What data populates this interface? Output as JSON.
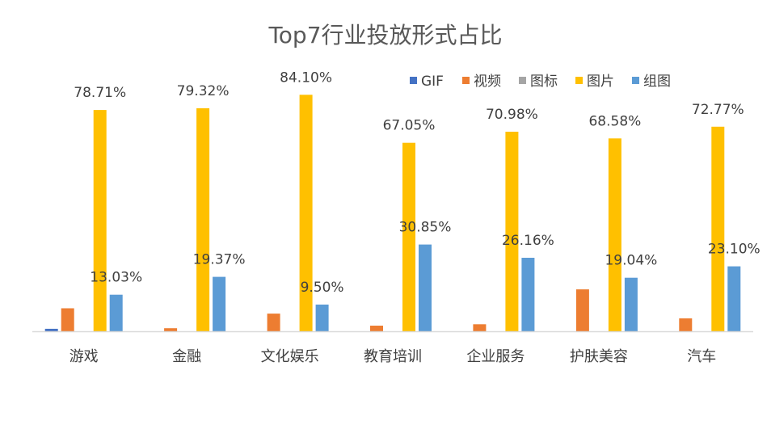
{
  "chart_data": {
    "type": "bar",
    "title": "Top7行业投放形式占比",
    "categories": [
      "游戏",
      "金融",
      "文化娱乐",
      "教育培训",
      "企业服务",
      "护肤美容",
      "汽车"
    ],
    "series": [
      {
        "name": "GIF",
        "color": "#4472C4",
        "values": [
          0.9,
          0,
          0,
          0,
          0,
          0,
          0
        ]
      },
      {
        "name": "视频",
        "color": "#ED7D31",
        "values": [
          8.2,
          1.1,
          6.3,
          2.0,
          2.5,
          14.9,
          4.6
        ]
      },
      {
        "name": "图标",
        "color": "#A5A5A5",
        "values": [
          0,
          0,
          0,
          0,
          0,
          0,
          0
        ]
      },
      {
        "name": "图片",
        "color": "#FFC000",
        "values": [
          78.71,
          79.32,
          84.1,
          67.05,
          70.98,
          68.58,
          72.77
        ]
      },
      {
        "name": "组图",
        "color": "#5B9BD5",
        "values": [
          13.03,
          19.37,
          9.5,
          30.85,
          26.16,
          19.04,
          23.1
        ]
      }
    ],
    "data_labels": {
      "图片": [
        "78.71%",
        "79.32%",
        "84.10%",
        "67.05%",
        "70.98%",
        "68.58%",
        "72.77%"
      ],
      "组图": [
        "13.03%",
        "19.37%",
        "9.50%",
        "30.85%",
        "26.16%",
        "19.04%",
        "23.10%"
      ]
    },
    "xlabel": "",
    "ylabel": "",
    "ylim": [
      0,
      100
    ],
    "grid": false,
    "legend_position": "top-right"
  }
}
